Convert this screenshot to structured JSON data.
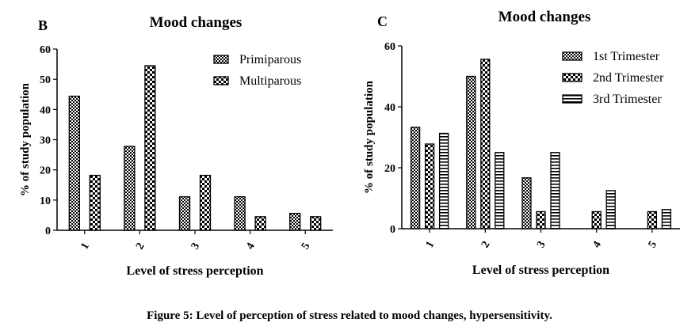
{
  "figure_caption": "Figure 5: Level of perception of stress related to mood changes, hypersensitivity.",
  "chart_data": [
    {
      "panel_label": "B",
      "type": "bar",
      "title": "Mood changes",
      "xlabel": "Level of stress perception",
      "ylabel": "% of study population",
      "categories": [
        "1",
        "2",
        "3",
        "4",
        "5"
      ],
      "yticks": [
        "0",
        "10",
        "20",
        "30",
        "40",
        "50",
        "60"
      ],
      "ylim": [
        0,
        60
      ],
      "legend_position": "top-right",
      "series": [
        {
          "name": "Primiparous",
          "values": [
            44.4,
            27.8,
            11.1,
            11.1,
            5.6
          ],
          "pattern": "checker"
        },
        {
          "name": "Multiparous",
          "values": [
            18.2,
            54.5,
            18.2,
            4.5,
            4.5
          ],
          "pattern": "coarse-checker"
        }
      ]
    },
    {
      "panel_label": "C",
      "type": "bar",
      "title": "Mood changes",
      "xlabel": "Level of stress perception",
      "ylabel": "% of study population",
      "categories": [
        "1",
        "2",
        "3",
        "4",
        "5"
      ],
      "yticks": [
        "0",
        "20",
        "40",
        "60"
      ],
      "ylim": [
        0,
        60
      ],
      "legend_position": "top-right",
      "series": [
        {
          "name": "1st Trimester",
          "values": [
            33.3,
            50.0,
            16.7,
            0,
            0
          ],
          "pattern": "checker"
        },
        {
          "name": "2nd Trimester",
          "values": [
            27.8,
            55.6,
            5.6,
            5.6,
            5.6
          ],
          "pattern": "coarse-checker"
        },
        {
          "name": "3rd Trimester",
          "values": [
            31.3,
            25.0,
            25.0,
            12.5,
            6.3
          ],
          "pattern": "hstripe"
        }
      ]
    }
  ]
}
